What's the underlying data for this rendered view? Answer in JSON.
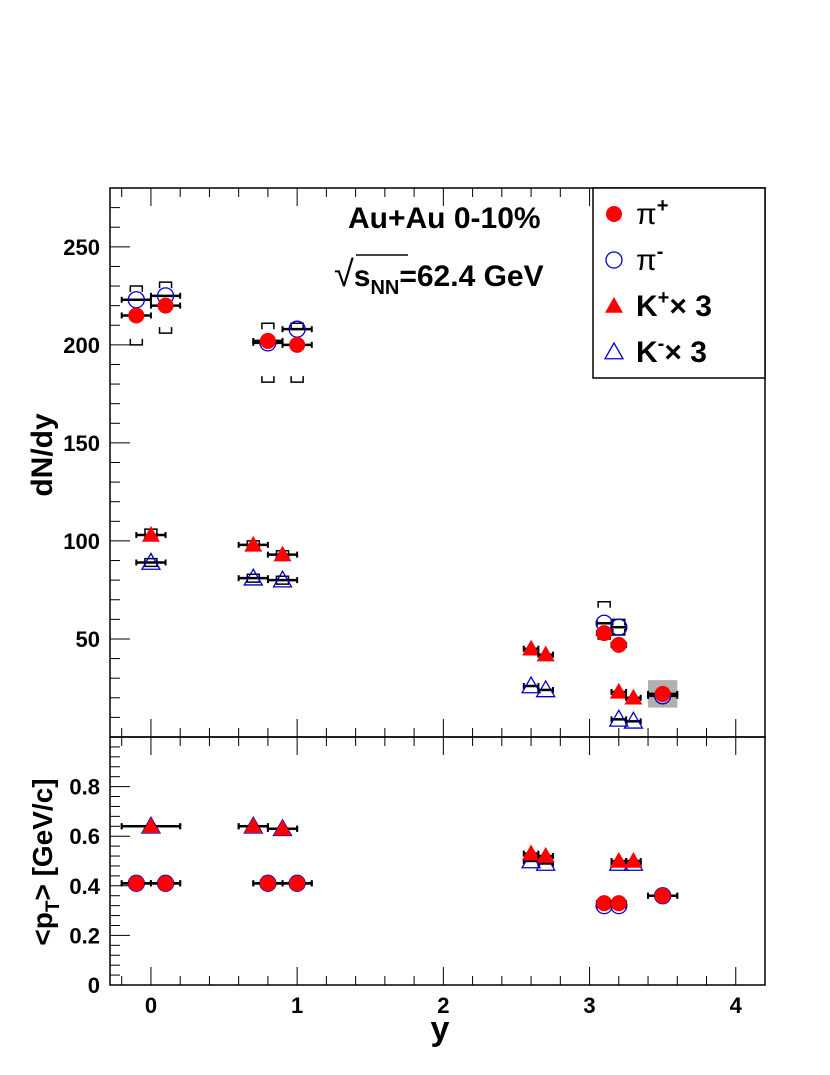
{
  "chart_data": [
    {
      "type": "scatter",
      "panel": "top",
      "ylabel": "dN/dy",
      "xlim": [
        -0.28,
        4.2
      ],
      "ylim": [
        0,
        280
      ],
      "x_ticks": [
        "0",
        "1",
        "2",
        "3",
        "4"
      ],
      "y_ticks": [
        {
          "v": 50,
          "t": "50"
        },
        {
          "v": 100,
          "t": "100"
        },
        {
          "v": 150,
          "t": "150"
        },
        {
          "v": 200,
          "t": "200"
        },
        {
          "v": 250,
          "t": "250"
        }
      ],
      "annotation": {
        "line1": "Au+Au 0-10%",
        "sqrt_sym": "√",
        "s": "s",
        "sub": "NN",
        "rest": "=62.4 GeV"
      },
      "series": [
        {
          "name": "pi_plus",
          "points": [
            {
              "x": -0.1,
              "y": 215,
              "xerr": 0.1
            },
            {
              "x": 0.1,
              "y": 220,
              "xerr": 0.1
            },
            {
              "x": 0.8,
              "y": 202,
              "xerr": 0.1
            },
            {
              "x": 1.0,
              "y": 200,
              "xerr": 0.1
            },
            {
              "x": 3.1,
              "y": 53,
              "xerr": 0.05
            },
            {
              "x": 3.2,
              "y": 47,
              "xerr": 0.05
            },
            {
              "x": 3.5,
              "y": 22,
              "xerr": 0.1
            }
          ]
        },
        {
          "name": "pi_minus",
          "points": [
            {
              "x": -0.1,
              "y": 223,
              "xerr": 0.1
            },
            {
              "x": 0.1,
              "y": 225,
              "xerr": 0.1
            },
            {
              "x": 0.8,
              "y": 201,
              "xerr": 0.1
            },
            {
              "x": 1.0,
              "y": 208,
              "xerr": 0.1
            },
            {
              "x": 3.1,
              "y": 58,
              "xerr": 0.05
            },
            {
              "x": 3.2,
              "y": 56,
              "xerr": 0.05
            },
            {
              "x": 3.5,
              "y": 21,
              "xerr": 0.1
            }
          ]
        },
        {
          "name": "K_plus_x3",
          "points": [
            {
              "x": 0.0,
              "y": 103,
              "xerr": 0.1
            },
            {
              "x": 0.7,
              "y": 98,
              "xerr": 0.1
            },
            {
              "x": 0.9,
              "y": 93,
              "xerr": 0.1
            },
            {
              "x": 2.6,
              "y": 45,
              "xerr": 0.05
            },
            {
              "x": 2.7,
              "y": 42,
              "xerr": 0.05
            },
            {
              "x": 3.2,
              "y": 23,
              "xerr": 0.05
            },
            {
              "x": 3.3,
              "y": 20,
              "xerr": 0.05
            }
          ]
        },
        {
          "name": "K_minus_x3",
          "points": [
            {
              "x": 0.0,
              "y": 89,
              "xerr": 0.1
            },
            {
              "x": 0.7,
              "y": 81,
              "xerr": 0.1
            },
            {
              "x": 0.9,
              "y": 80,
              "xerr": 0.1
            },
            {
              "x": 2.6,
              "y": 26,
              "xerr": 0.05
            },
            {
              "x": 2.7,
              "y": 24,
              "xerr": 0.05
            },
            {
              "x": 3.2,
              "y": 9,
              "xerr": 0.05
            },
            {
              "x": 3.3,
              "y": 8,
              "xerr": 0.05
            }
          ]
        }
      ],
      "systematics": [
        {
          "x": -0.1,
          "ylo": 200,
          "yhi": 230
        },
        {
          "x": 0.1,
          "ylo": 206,
          "yhi": 232
        },
        {
          "x": 0.8,
          "ylo": 181,
          "yhi": 211
        },
        {
          "x": 1.0,
          "ylo": 181,
          "yhi": 211
        },
        {
          "x": 3.1,
          "ylo": 50,
          "yhi": 69
        },
        {
          "x": 3.2,
          "ylo": 52,
          "yhi": 60
        },
        {
          "x": 0.0,
          "ylo": 101,
          "yhi": 106
        },
        {
          "x": 0.7,
          "ylo": 96,
          "yhi": 100
        },
        {
          "x": 0.9,
          "ylo": 91,
          "yhi": 95
        },
        {
          "x": 0.0,
          "ylo": 87,
          "yhi": 91
        },
        {
          "x": 0.7,
          "ylo": 79,
          "yhi": 83
        },
        {
          "x": 0.9,
          "ylo": 78,
          "yhi": 82
        }
      ],
      "shaded_box": {
        "x0": 3.4,
        "x1": 3.6,
        "y0": 15,
        "y1": 29
      },
      "legend": {
        "placement": "top-right",
        "entries": [
          {
            "series": "pi_plus",
            "sym": "π",
            "sup": "+",
            "suffix": ""
          },
          {
            "series": "pi_minus",
            "sym": "π",
            "sup": "-",
            "suffix": ""
          },
          {
            "series": "K_plus_x3",
            "sym": "K",
            "sup": "+",
            "suffix": "× 3"
          },
          {
            "series": "K_minus_x3",
            "sym": "K",
            "sup": "-",
            "suffix": "× 3"
          }
        ]
      }
    },
    {
      "type": "scatter",
      "panel": "bottom",
      "xlabel": "y",
      "ylabel": {
        "main": "<p",
        "sub": "T",
        "rest": "> [GeV/c]"
      },
      "xlim": [
        -0.28,
        4.2
      ],
      "ylim": [
        0,
        1.0
      ],
      "x_ticks": [
        {
          "v": 0,
          "t": "0"
        },
        {
          "v": 1,
          "t": "1"
        },
        {
          "v": 2,
          "t": "2"
        },
        {
          "v": 3,
          "t": "3"
        },
        {
          "v": 4,
          "t": "4"
        }
      ],
      "y_ticks": [
        {
          "v": 0,
          "t": "0"
        },
        {
          "v": 0.2,
          "t": "0.2"
        },
        {
          "v": 0.4,
          "t": "0.4"
        },
        {
          "v": 0.6,
          "t": "0.6"
        },
        {
          "v": 0.8,
          "t": "0.8"
        }
      ],
      "series": [
        {
          "name": "pi_plus",
          "points": [
            {
              "x": -0.1,
              "y": 0.41,
              "xerr": 0.1
            },
            {
              "x": 0.1,
              "y": 0.41,
              "xerr": 0.1
            },
            {
              "x": 0.8,
              "y": 0.41,
              "xerr": 0.1
            },
            {
              "x": 1.0,
              "y": 0.41,
              "xerr": 0.1
            },
            {
              "x": 3.1,
              "y": 0.33,
              "xerr": 0.05
            },
            {
              "x": 3.2,
              "y": 0.33,
              "xerr": 0.05
            },
            {
              "x": 3.5,
              "y": 0.36,
              "xerr": 0.1
            }
          ]
        },
        {
          "name": "pi_minus",
          "points": [
            {
              "x": -0.1,
              "y": 0.41,
              "xerr": 0.1
            },
            {
              "x": 0.1,
              "y": 0.41,
              "xerr": 0.1
            },
            {
              "x": 0.8,
              "y": 0.41,
              "xerr": 0.1
            },
            {
              "x": 1.0,
              "y": 0.41,
              "xerr": 0.1
            },
            {
              "x": 3.1,
              "y": 0.32,
              "xerr": 0.05
            },
            {
              "x": 3.2,
              "y": 0.32,
              "xerr": 0.05
            },
            {
              "x": 3.5,
              "y": 0.36,
              "xerr": 0.1
            }
          ]
        },
        {
          "name": "K_plus_x3",
          "points": [
            {
              "x": 0.0,
              "y": 0.64,
              "xerr": 0.2
            },
            {
              "x": 0.7,
              "y": 0.64,
              "xerr": 0.1
            },
            {
              "x": 0.9,
              "y": 0.63,
              "xerr": 0.1
            },
            {
              "x": 2.6,
              "y": 0.53,
              "xerr": 0.05
            },
            {
              "x": 2.7,
              "y": 0.52,
              "xerr": 0.05
            },
            {
              "x": 3.2,
              "y": 0.5,
              "xerr": 0.05
            },
            {
              "x": 3.3,
              "y": 0.5,
              "xerr": 0.05
            }
          ]
        },
        {
          "name": "K_minus_x3",
          "points": [
            {
              "x": 0.0,
              "y": 0.64,
              "xerr": 0.2
            },
            {
              "x": 0.7,
              "y": 0.64,
              "xerr": 0.1
            },
            {
              "x": 0.9,
              "y": 0.63,
              "xerr": 0.1
            },
            {
              "x": 2.6,
              "y": 0.5,
              "xerr": 0.05
            },
            {
              "x": 2.7,
              "y": 0.49,
              "xerr": 0.05
            },
            {
              "x": 3.2,
              "y": 0.49,
              "xerr": 0.05
            },
            {
              "x": 3.3,
              "y": 0.49,
              "xerr": 0.05
            }
          ]
        }
      ]
    }
  ],
  "colors": {
    "filled": "#ff0000",
    "open": "#0000cc",
    "axis": "#000000",
    "shade": "#b0b0b0"
  }
}
